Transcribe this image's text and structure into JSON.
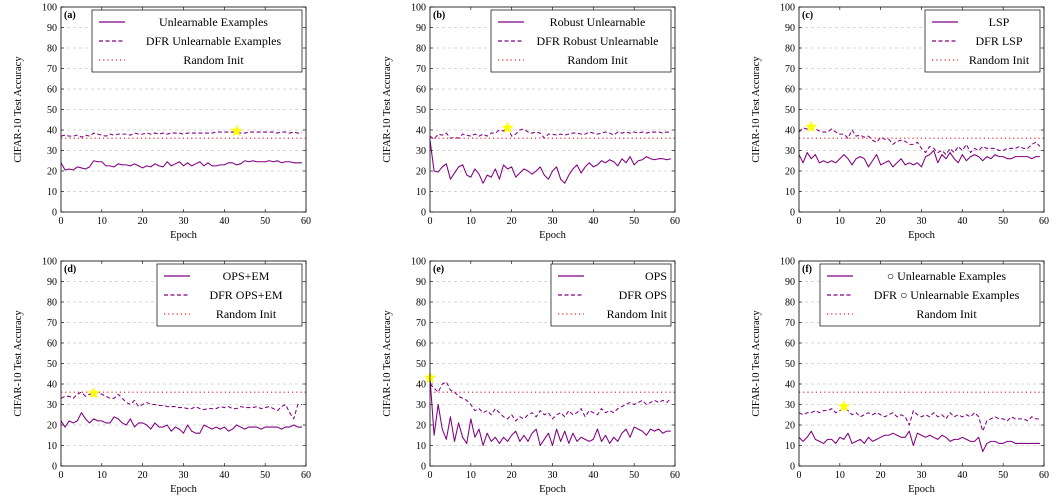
{
  "figure": {
    "line_color": "#800080",
    "random_init_color": "#e8202a",
    "star_color": "#ffff00",
    "grid_color": "#b0b0b0"
  },
  "chart_data": [
    {
      "type": "line",
      "panel_label": "(a)",
      "xlabel": "Epoch",
      "ylabel": "CIFAR-10 Test Accuracy",
      "xlim": [
        0,
        60
      ],
      "ylim": [
        0,
        100
      ],
      "xticks": [
        0,
        10,
        20,
        30,
        40,
        50,
        60
      ],
      "yticks": [
        0,
        10,
        20,
        30,
        40,
        50,
        60,
        70,
        80,
        90,
        100
      ],
      "grid": "horizontal dashed",
      "legend_position": "top-right",
      "legend_align": "center",
      "star": {
        "x": 43,
        "y": 39.5
      },
      "series": [
        {
          "name": "Unlearnable Examples",
          "style": "solid",
          "x_start": 0,
          "values": [
            24,
            20.5,
            21,
            20.5,
            22,
            21.5,
            21,
            22,
            25,
            24.5,
            24.5,
            22.5,
            22.5,
            22,
            23.5,
            23,
            23,
            22.5,
            23.5,
            22.5,
            21.5,
            22.5,
            22,
            23.5,
            22.5,
            22,
            24.5,
            22.5,
            23.5,
            24.5,
            22.5,
            24,
            22.5,
            23.5,
            24.5,
            22.5,
            24,
            22.5,
            22.5,
            23,
            23,
            24,
            24,
            23,
            23.5,
            25,
            24.5,
            25,
            24.5,
            24.5,
            24.5,
            25,
            24.5,
            25,
            24,
            24.5,
            24.5,
            24,
            24,
            24
          ]
        },
        {
          "name": "DFR Unlearnable Examples",
          "style": "dashed",
          "x_start": 0,
          "values": [
            37,
            37.5,
            37,
            37,
            37.5,
            36.5,
            37.5,
            37,
            38.5,
            38,
            37.5,
            37,
            38,
            37.5,
            38,
            38,
            38,
            37.5,
            38.5,
            38,
            38,
            38.5,
            38,
            38.5,
            38,
            38.5,
            38,
            38.5,
            38.5,
            38.5,
            38,
            38.5,
            38.5,
            38.5,
            38.5,
            38.5,
            38.5,
            38.5,
            39,
            39,
            39,
            39,
            39,
            39,
            38.5,
            38.5,
            39,
            39,
            39,
            39,
            39,
            39,
            39,
            38.5,
            39,
            39,
            38.5,
            39,
            38.5,
            38.5
          ]
        },
        {
          "name": "Random Init",
          "style": "dotted",
          "constant": 36
        }
      ]
    },
    {
      "type": "line",
      "panel_label": "(b)",
      "xlabel": "Epoch",
      "ylabel": "CIFAR-10 Test Accuracy",
      "xlim": [
        0,
        60
      ],
      "ylim": [
        0,
        100
      ],
      "xticks": [
        0,
        10,
        20,
        30,
        40,
        50,
        60
      ],
      "yticks": [
        0,
        10,
        20,
        30,
        40,
        50,
        60,
        70,
        80,
        90,
        100
      ],
      "grid": "horizontal dashed",
      "legend_position": "top-right",
      "legend_align": "center",
      "star": {
        "x": 19,
        "y": 41
      },
      "series": [
        {
          "name": "Robust Unlearnable",
          "style": "solid",
          "x_start": 0,
          "values": [
            35,
            20,
            19.5,
            22,
            23.5,
            16,
            19,
            22,
            23,
            18,
            17,
            21,
            18.5,
            14,
            18,
            17,
            21,
            16,
            23,
            21,
            22,
            17,
            19,
            21,
            20,
            18.5,
            20,
            22,
            18,
            16,
            20,
            22,
            16,
            14,
            18,
            21,
            23,
            19,
            22,
            24,
            22,
            23,
            25,
            24,
            25.5,
            24.5,
            22.5,
            26,
            24,
            27,
            23,
            25,
            25.5,
            27,
            26,
            25.5,
            26,
            26,
            25.5,
            26
          ]
        },
        {
          "name": "DFR Robust Unlearnable",
          "style": "dashed",
          "x_start": 0,
          "values": [
            37,
            35.5,
            38,
            37.5,
            38.5,
            36,
            36.5,
            36,
            38,
            37.5,
            37,
            38,
            37,
            38,
            37,
            38.5,
            38.5,
            40,
            39.5,
            41,
            37,
            38,
            40,
            40.5,
            39,
            38.5,
            39,
            38.5,
            36,
            38,
            38,
            37.5,
            38,
            37.5,
            38,
            38.5,
            38.5,
            38,
            38,
            39,
            38.5,
            38,
            38.5,
            39,
            38.5,
            37.5,
            39,
            38.5,
            39,
            38.5,
            39,
            38.5,
            39,
            38.5,
            39,
            39,
            39,
            38.5,
            39,
            39
          ]
        },
        {
          "name": "Random Init",
          "style": "dotted",
          "constant": 36
        }
      ]
    },
    {
      "type": "line",
      "panel_label": "(c)",
      "xlabel": "Epoch",
      "ylabel": "CIFAR-10 Test Accuracy",
      "xlim": [
        0,
        60
      ],
      "ylim": [
        0,
        100
      ],
      "xticks": [
        0,
        10,
        20,
        30,
        40,
        50,
        60
      ],
      "yticks": [
        0,
        10,
        20,
        30,
        40,
        50,
        60,
        70,
        80,
        90,
        100
      ],
      "grid": "horizontal dashed",
      "legend_position": "top-right",
      "legend_align": "center",
      "star": {
        "x": 3,
        "y": 41.5
      },
      "series": [
        {
          "name": "LSP",
          "style": "solid",
          "x_start": 0,
          "values": [
            28,
            24,
            29,
            26,
            28,
            24,
            25,
            24,
            25,
            24,
            26,
            28,
            26,
            23,
            26,
            27,
            26,
            22,
            25,
            28,
            23,
            24,
            25,
            22,
            24,
            26,
            23,
            24,
            23,
            24,
            22,
            27,
            28,
            30,
            24,
            28,
            26,
            29,
            26,
            24,
            28,
            25,
            27,
            28,
            27,
            25,
            27,
            26,
            28,
            27,
            27,
            26,
            26,
            27,
            27,
            27,
            27,
            26,
            27,
            27
          ]
        },
        {
          "name": "DFR LSP",
          "style": "dashed",
          "x_start": 0,
          "values": [
            39,
            41,
            40.5,
            41,
            40.5,
            39.5,
            39,
            39,
            40.5,
            39,
            38,
            38,
            36,
            40,
            37,
            37.5,
            36.5,
            37,
            35,
            34,
            36.5,
            35.5,
            35.5,
            33,
            34.5,
            35,
            34.5,
            33,
            33,
            34,
            31,
            29,
            32,
            31,
            29,
            30,
            28,
            31,
            29,
            32,
            30,
            33,
            29,
            31,
            30,
            32,
            31,
            31,
            31,
            30,
            30,
            31,
            31,
            31,
            32,
            31,
            31,
            33,
            34,
            32
          ]
        },
        {
          "name": "Random Init",
          "style": "dotted",
          "constant": 36
        }
      ]
    },
    {
      "type": "line",
      "panel_label": "(d)",
      "xlabel": "Epoch",
      "ylabel": "CIFAR-10 Test Accuracy",
      "xlim": [
        0,
        60
      ],
      "ylim": [
        0,
        100
      ],
      "xticks": [
        0,
        10,
        20,
        30,
        40,
        50,
        60
      ],
      "yticks": [
        0,
        10,
        20,
        30,
        40,
        50,
        60,
        70,
        80,
        90,
        100
      ],
      "grid": "horizontal dashed",
      "legend_position": "top-right",
      "legend_align": "center",
      "star": {
        "x": 8,
        "y": 35.5
      },
      "series": [
        {
          "name": "OPS+EM",
          "style": "solid",
          "x_start": 0,
          "values": [
            22,
            19,
            22,
            21,
            22,
            26,
            23,
            21,
            23,
            22,
            22,
            21,
            21,
            24,
            23,
            21,
            20,
            23,
            19,
            21,
            21,
            20,
            18,
            21,
            19,
            19,
            20,
            17,
            19,
            18,
            16,
            20,
            17,
            16,
            16,
            20,
            19,
            18,
            19,
            18,
            19,
            17,
            18,
            20,
            19,
            18,
            19,
            19,
            19,
            18,
            19,
            19,
            19,
            19,
            18,
            19,
            19,
            20,
            19,
            19
          ]
        },
        {
          "name": "DFR OPS+EM",
          "style": "dashed",
          "x_start": 0,
          "values": [
            33,
            34,
            34,
            33,
            35,
            36,
            34,
            35,
            35.5,
            36,
            35,
            34,
            33,
            33,
            35,
            33,
            31,
            30,
            32,
            29,
            30,
            31,
            30,
            30,
            29.5,
            29.5,
            29,
            29,
            29,
            28.5,
            28.5,
            28,
            28,
            29,
            28,
            27.5,
            28,
            28,
            28,
            29,
            28.5,
            29,
            28,
            28,
            29,
            28.5,
            28.5,
            28.5,
            29,
            28,
            28.5,
            29,
            28,
            27,
            29,
            30,
            26,
            23,
            30,
            30
          ]
        },
        {
          "name": "Random Init",
          "style": "dotted",
          "constant": 36
        }
      ]
    },
    {
      "type": "line",
      "panel_label": "(e)",
      "xlabel": "Epoch",
      "ylabel": "CIFAR-10 Test Accuracy",
      "xlim": [
        0,
        60
      ],
      "ylim": [
        0,
        100
      ],
      "xticks": [
        0,
        10,
        20,
        30,
        40,
        50,
        60
      ],
      "yticks": [
        0,
        10,
        20,
        30,
        40,
        50,
        60,
        70,
        80,
        90,
        100
      ],
      "grid": "horizontal dashed",
      "legend_position": "top-right",
      "legend_align": "right",
      "star": {
        "x": 0,
        "y": 43
      },
      "series": [
        {
          "name": "OPS",
          "style": "solid",
          "x_start": 0,
          "values": [
            43,
            15,
            30,
            18,
            13,
            24,
            12,
            21,
            14,
            11,
            23,
            14,
            18,
            10,
            16,
            12,
            14,
            11,
            14,
            12,
            15,
            17,
            12,
            15,
            12,
            16,
            18,
            10,
            13,
            16,
            10,
            18,
            12,
            17,
            11,
            16,
            12,
            14,
            13,
            12,
            13,
            18,
            12,
            15,
            11,
            14,
            12,
            16,
            18,
            14,
            19,
            18,
            17,
            15,
            18,
            17,
            18,
            16,
            17,
            17
          ]
        },
        {
          "name": "DFR OPS",
          "style": "dashed",
          "x_start": 0,
          "values": [
            40,
            38,
            36,
            40,
            41,
            37,
            36,
            34,
            33,
            32,
            30,
            27,
            28,
            26,
            27,
            25,
            28,
            26,
            24,
            23,
            25,
            22,
            24,
            23,
            25,
            26,
            24,
            27,
            25,
            26,
            23,
            25,
            26,
            24,
            27,
            25,
            26,
            28,
            24,
            27,
            26,
            25,
            28,
            26,
            27,
            26,
            28,
            29,
            30,
            31,
            30,
            31,
            32,
            30,
            31,
            32,
            31,
            32,
            31,
            33
          ]
        },
        {
          "name": "Random Init",
          "style": "dotted",
          "constant": 36
        }
      ]
    },
    {
      "type": "line",
      "panel_label": "(f)",
      "xlabel": "Epoch",
      "ylabel": "CIFAR-10 Test Accuracy",
      "xlim": [
        0,
        60
      ],
      "ylim": [
        0,
        100
      ],
      "xticks": [
        0,
        10,
        20,
        30,
        40,
        50,
        60
      ],
      "yticks": [
        0,
        10,
        20,
        30,
        40,
        50,
        60,
        70,
        80,
        90,
        100
      ],
      "grid": "horizontal dashed",
      "legend_position": "top-right",
      "legend_align": "center",
      "star": {
        "x": 11,
        "y": 29
      },
      "series": [
        {
          "name": "○ Unlearnable Examples",
          "style": "solid",
          "x_start": 0,
          "values": [
            14,
            12,
            14,
            17,
            13,
            12,
            11,
            13,
            13,
            11,
            14,
            13,
            16,
            11,
            12,
            13,
            11,
            14,
            12,
            13,
            14,
            15,
            15,
            16,
            15,
            14,
            14,
            17,
            10,
            16,
            15,
            14,
            15,
            14,
            13,
            15,
            14,
            12,
            13,
            13,
            14,
            13,
            12,
            12,
            14,
            7,
            11,
            12,
            12,
            11,
            11,
            12,
            12,
            11,
            11,
            11,
            11,
            11,
            11,
            11
          ]
        },
        {
          "name": "DFR ○ Unlearnable Examples",
          "style": "dashed",
          "x_start": 0,
          "values": [
            26,
            25,
            26,
            26,
            27,
            26,
            27,
            27,
            28,
            26,
            27,
            28,
            27,
            25,
            26,
            24,
            25,
            26,
            25,
            26,
            25,
            24,
            25,
            26,
            24,
            25,
            24,
            20,
            27,
            25,
            24,
            25,
            24,
            26,
            24,
            25,
            23,
            26,
            24,
            25,
            24,
            25,
            24,
            26,
            24,
            17,
            22,
            23,
            24,
            23,
            23,
            22,
            24,
            23,
            23,
            23,
            22,
            24,
            23,
            23
          ]
        },
        {
          "name": "Random Init",
          "style": "dotted",
          "constant": 36
        }
      ]
    }
  ]
}
